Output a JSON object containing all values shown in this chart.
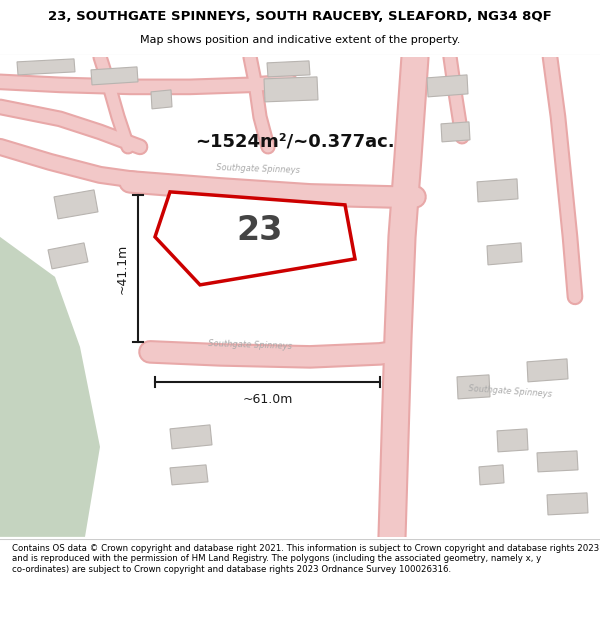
{
  "title": "23, SOUTHGATE SPINNEYS, SOUTH RAUCEBY, SLEAFORD, NG34 8QF",
  "subtitle": "Map shows position and indicative extent of the property.",
  "footer": "Contains OS data © Crown copyright and database right 2021. This information is subject to Crown copyright and database rights 2023 and is reproduced with the permission of HM Land Registry. The polygons (including the associated geometry, namely x, y co-ordinates) are subject to Crown copyright and database rights 2023 Ordnance Survey 100026316.",
  "map_bg": "#f7f2ed",
  "header_bg": "#ffffff",
  "footer_bg": "#ffffff",
  "road_color": "#f2c8c8",
  "road_edge_color": "#e8a8a8",
  "building_fill": "#d4d0cc",
  "building_edge": "#b8b4b0",
  "property_fill": "#ffffff",
  "property_edge": "#cc0000",
  "property_edge_width": 2.5,
  "dim_color": "#1a1a1a",
  "area_text": "~1524m²/~0.377ac.",
  "width_text": "~61.0m",
  "height_text": "~41.1m",
  "property_number": "23",
  "green_color": "#c5d4c0",
  "road_label_color": "#aaaaaa",
  "separator_color": "#cccccc"
}
